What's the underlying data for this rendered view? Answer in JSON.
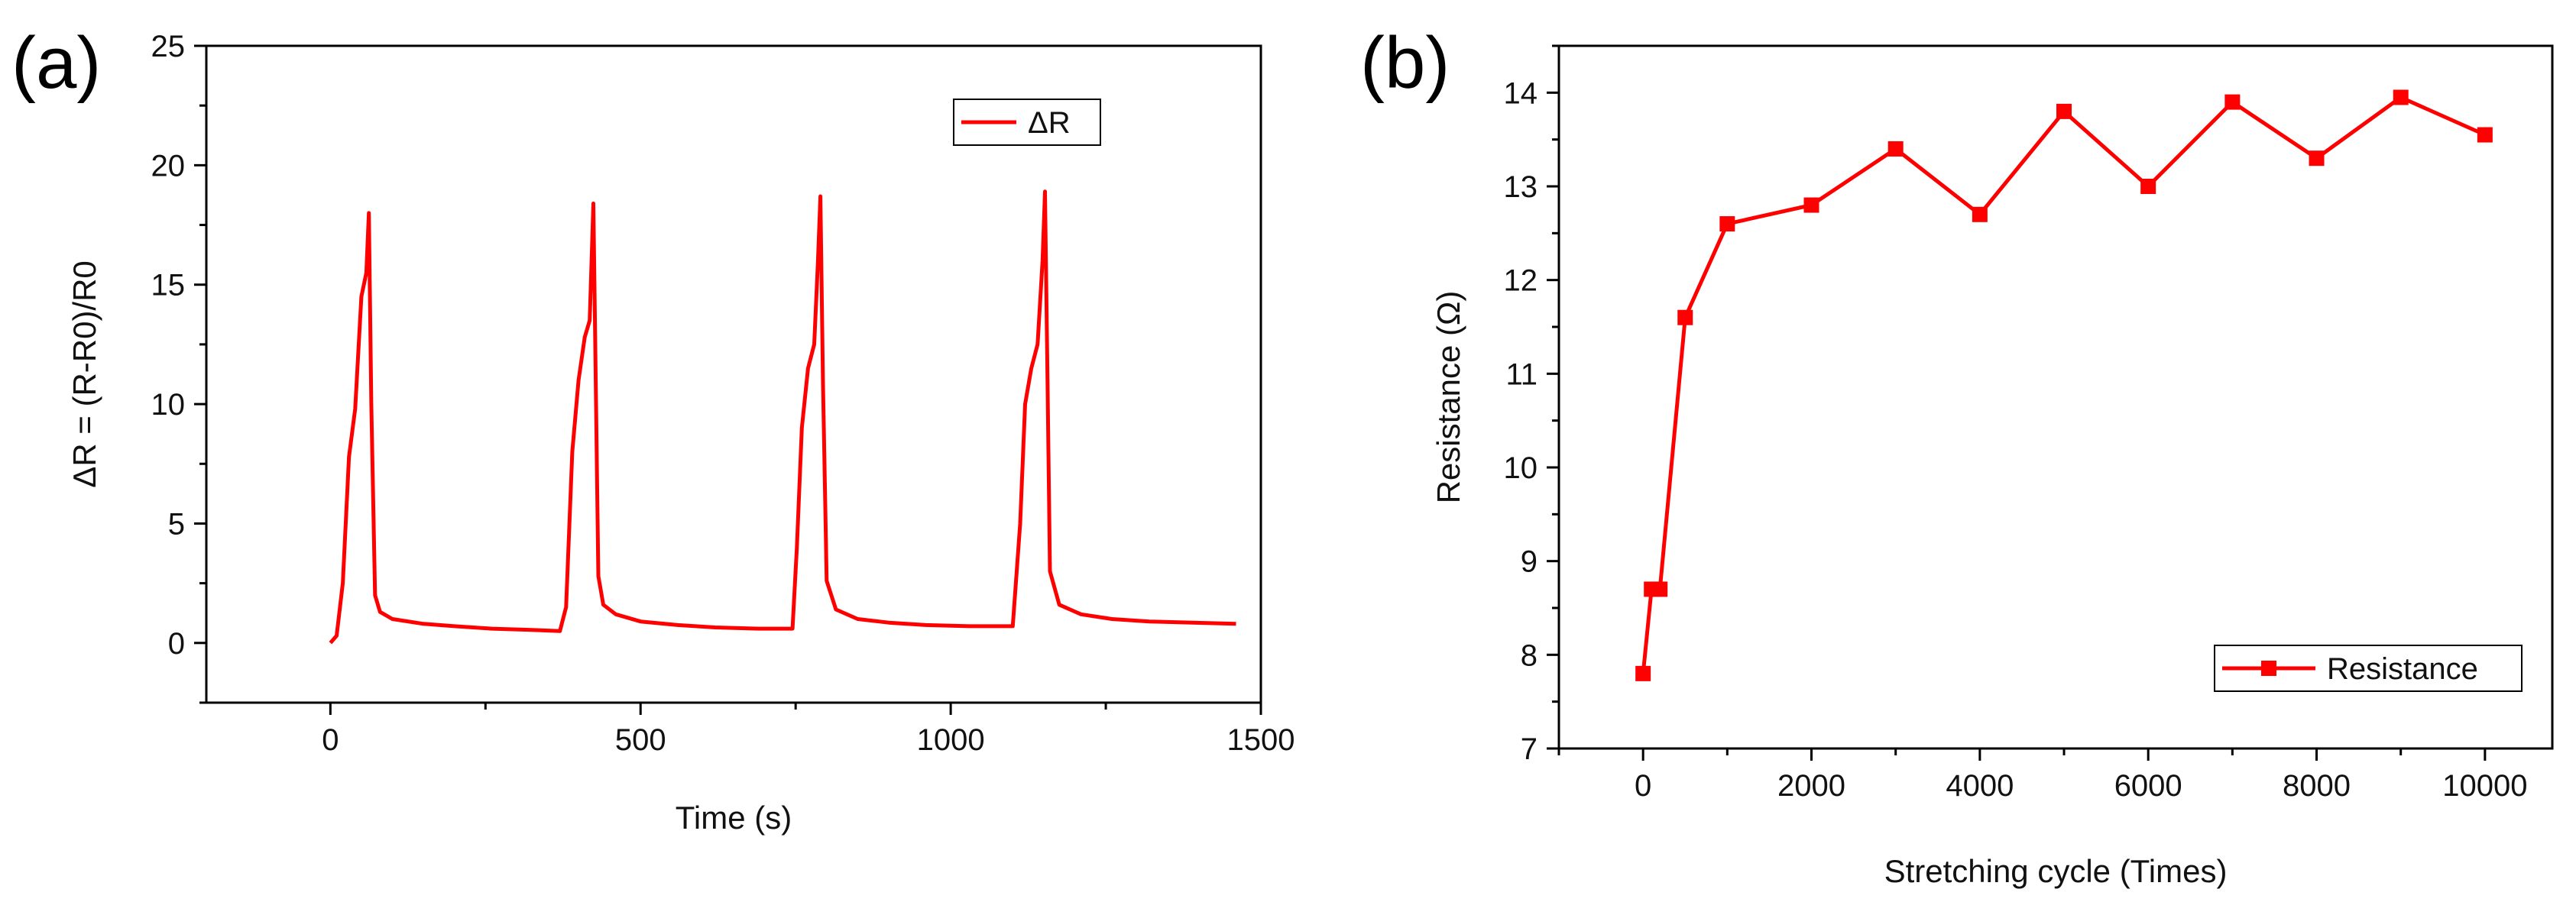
{
  "chart_data": [
    {
      "type": "line",
      "panel_label": "(a)",
      "xlabel": "Time (s)",
      "ylabel": "ΔR = (R-R0)/R0",
      "xlim": [
        -200,
        1500
      ],
      "ylim": [
        -2.5,
        25
      ],
      "xticks": [
        0,
        500,
        1000,
        1500
      ],
      "yticks": [
        0,
        5,
        10,
        15,
        20,
        25
      ],
      "legend": {
        "label": "ΔR",
        "position": "top-right"
      },
      "color": "#ff0000",
      "series": [
        {
          "name": "ΔR",
          "x": [
            0,
            10,
            20,
            30,
            40,
            50,
            58,
            62,
            66,
            72,
            80,
            100,
            150,
            200,
            260,
            320,
            370,
            380,
            390,
            400,
            410,
            418,
            424,
            428,
            432,
            440,
            460,
            500,
            560,
            620,
            690,
            745,
            752,
            760,
            770,
            780,
            786,
            790,
            794,
            800,
            815,
            850,
            900,
            960,
            1030,
            1100,
            1112,
            1120,
            1130,
            1140,
            1148,
            1152,
            1156,
            1160,
            1175,
            1210,
            1260,
            1320,
            1390,
            1460
          ],
          "y": [
            0,
            0.3,
            2.5,
            7.8,
            9.8,
            14.5,
            15.5,
            18.0,
            10.0,
            2.0,
            1.3,
            1.0,
            0.8,
            0.7,
            0.6,
            0.55,
            0.5,
            1.5,
            8.0,
            11.0,
            12.8,
            13.5,
            18.4,
            10.5,
            2.8,
            1.6,
            1.2,
            0.9,
            0.75,
            0.65,
            0.6,
            0.6,
            4.0,
            9.0,
            11.5,
            12.5,
            16.0,
            18.7,
            11.0,
            2.6,
            1.4,
            1.0,
            0.85,
            0.75,
            0.7,
            0.7,
            5.0,
            10.0,
            11.5,
            12.5,
            16.0,
            18.9,
            11.0,
            3.0,
            1.6,
            1.2,
            1.0,
            0.9,
            0.85,
            0.8
          ]
        }
      ]
    },
    {
      "type": "line",
      "panel_label": "(b)",
      "xlabel": "Stretching cycle (Times)",
      "ylabel": "Resistance (Ω)",
      "xlim": [
        -1000,
        10800
      ],
      "ylim": [
        7,
        14.5
      ],
      "xticks": [
        0,
        2000,
        4000,
        6000,
        8000,
        10000
      ],
      "yticks": [
        7,
        8,
        9,
        10,
        11,
        12,
        13,
        14
      ],
      "legend": {
        "label": "Resistance",
        "position": "bottom-right"
      },
      "color": "#ff0000",
      "markers": true,
      "series": [
        {
          "name": "Resistance",
          "x": [
            0,
            100,
            200,
            500,
            1000,
            2000,
            3000,
            4000,
            5000,
            6000,
            7000,
            8000,
            9000,
            10000
          ],
          "y": [
            7.8,
            8.7,
            8.7,
            11.6,
            12.6,
            12.8,
            13.4,
            12.7,
            13.8,
            13.0,
            13.9,
            13.3,
            13.95,
            13.55
          ]
        }
      ]
    }
  ]
}
